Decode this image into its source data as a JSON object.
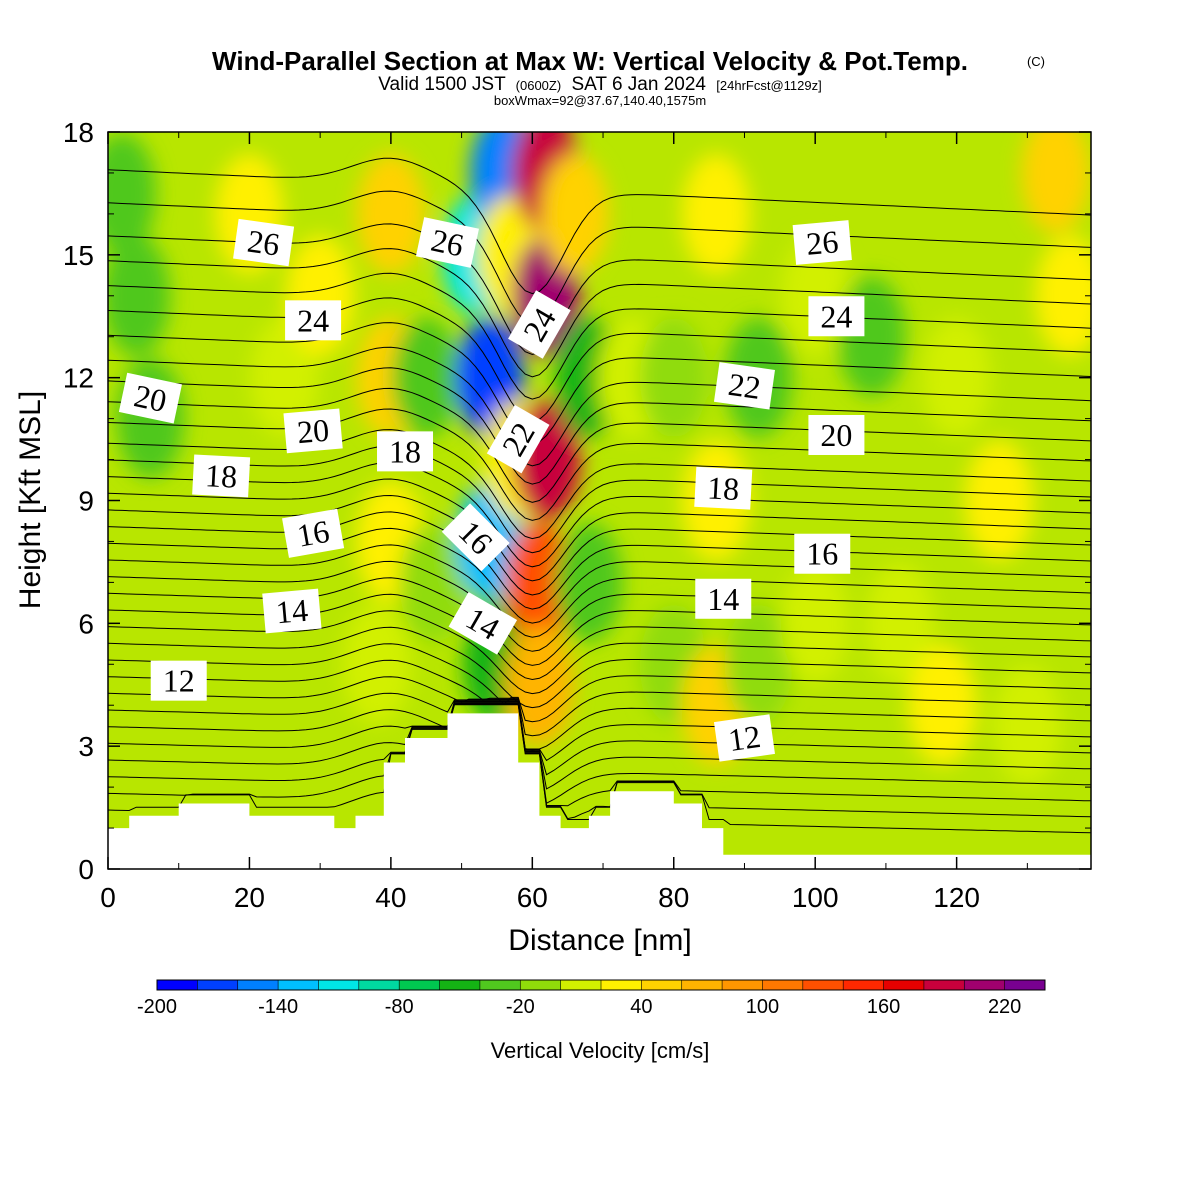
{
  "header": {
    "title": "Wind-Parallel Section at Max W: Vertical Velocity & Pot.Temp.",
    "copyright": "(C)",
    "valid_prefix": "Valid 1500 JST",
    "valid_utc": "(0600Z)",
    "valid_date": "SAT 6 Jan 2024",
    "forecast": "[24hrFcst@1129z]",
    "box_max": "boxWmax=92@37.67,140.40,1575m"
  },
  "chart_data": {
    "type": "heatmap",
    "title": "Wind-Parallel Section at Max W: Vertical Velocity & Pot.Temp.",
    "xlabel": "Distance [nm]",
    "ylabel": "Height [Kft MSL]",
    "xlim": [
      0,
      139
    ],
    "ylim": [
      0,
      18
    ],
    "x_ticks": [
      0,
      20,
      40,
      60,
      80,
      100,
      120
    ],
    "y_ticks": [
      0,
      3,
      6,
      9,
      12,
      15,
      18
    ],
    "x_tick_labels": [
      "0",
      "20",
      "40",
      "60",
      "80",
      "100",
      "120"
    ],
    "y_tick_labels": [
      "0",
      "3",
      "6",
      "9",
      "12",
      "15",
      "18"
    ],
    "colorbar": {
      "title": "Vertical Velocity [cm/s]",
      "min": -200,
      "max": 240,
      "step": 20,
      "tick_values": [
        -200,
        -140,
        -80,
        -20,
        40,
        100,
        160,
        220
      ],
      "tick_labels": [
        "-200",
        "-140",
        "-80",
        "-20",
        "40",
        "100",
        "160",
        "220"
      ],
      "colors": [
        "#0000ff",
        "#0040ff",
        "#0080ff",
        "#00bfff",
        "#00e6e6",
        "#00d9a0",
        "#00c850",
        "#14b414",
        "#50c81e",
        "#90dc0a",
        "#d2f000",
        "#fff000",
        "#ffd200",
        "#ffb400",
        "#ff9600",
        "#ff7800",
        "#ff5000",
        "#ff2800",
        "#e60000",
        "#c8003c",
        "#a0006e",
        "#780090"
      ]
    },
    "vertical_velocity_features": [
      {
        "x": 2,
        "y": 16.5,
        "w": -40
      },
      {
        "x": 4,
        "y": 14,
        "w": -30
      },
      {
        "x": 6,
        "y": 11,
        "w": -40
      },
      {
        "x": 20,
        "y": 16,
        "w": 20
      },
      {
        "x": 25,
        "y": 12,
        "w": 10
      },
      {
        "x": 30,
        "y": 14,
        "w": 20
      },
      {
        "x": 40,
        "y": 16,
        "w": 50
      },
      {
        "x": 40,
        "y": 12,
        "w": 40
      },
      {
        "x": 40,
        "y": 8,
        "w": 20
      },
      {
        "x": 38,
        "y": 5,
        "w": 10
      },
      {
        "x": 45,
        "y": 12,
        "w": -30
      },
      {
        "x": 46,
        "y": 7,
        "w": -20
      },
      {
        "x": 52,
        "y": 15,
        "w": -110
      },
      {
        "x": 54,
        "y": 12,
        "w": -170
      },
      {
        "x": 54,
        "y": 8,
        "w": -140
      },
      {
        "x": 55,
        "y": 5,
        "w": -60
      },
      {
        "x": 56,
        "y": 17,
        "w": -150
      },
      {
        "x": 57,
        "y": 15,
        "w": 20
      },
      {
        "x": 58,
        "y": 10,
        "w": 30
      },
      {
        "x": 62,
        "y": 17,
        "w": 190
      },
      {
        "x": 62,
        "y": 14,
        "w": 210
      },
      {
        "x": 62,
        "y": 10,
        "w": 180
      },
      {
        "x": 61,
        "y": 7,
        "w": 120
      },
      {
        "x": 61,
        "y": 4.5,
        "w": 60
      },
      {
        "x": 66,
        "y": 16,
        "w": 40
      },
      {
        "x": 68,
        "y": 12,
        "w": -60
      },
      {
        "x": 68,
        "y": 7,
        "w": -40
      },
      {
        "x": 74,
        "y": 12,
        "w": 0
      },
      {
        "x": 80,
        "y": 12,
        "w": -20
      },
      {
        "x": 80,
        "y": 5,
        "w": -10
      },
      {
        "x": 86,
        "y": 16,
        "w": 30
      },
      {
        "x": 86,
        "y": 9,
        "w": 30
      },
      {
        "x": 86,
        "y": 4,
        "w": 50
      },
      {
        "x": 92,
        "y": 12,
        "w": -40
      },
      {
        "x": 92,
        "y": 5,
        "w": -20
      },
      {
        "x": 100,
        "y": 14,
        "w": 10
      },
      {
        "x": 100,
        "y": 6,
        "w": 0
      },
      {
        "x": 108,
        "y": 13,
        "w": -40
      },
      {
        "x": 112,
        "y": 6,
        "w": 10
      },
      {
        "x": 118,
        "y": 4,
        "w": 20
      },
      {
        "x": 120,
        "y": 12,
        "w": 10
      },
      {
        "x": 126,
        "y": 9,
        "w": 20
      },
      {
        "x": 130,
        "y": 3.5,
        "w": 0
      },
      {
        "x": 134,
        "y": 17,
        "w": 40
      },
      {
        "x": 136,
        "y": 14,
        "w": 20
      }
    ],
    "terrain": [
      [
        0,
        1.0
      ],
      [
        3,
        1.0
      ],
      [
        3,
        1.3
      ],
      [
        10,
        1.3
      ],
      [
        10,
        1.6
      ],
      [
        20,
        1.6
      ],
      [
        20,
        1.3
      ],
      [
        32,
        1.3
      ],
      [
        32,
        1.0
      ],
      [
        35,
        1.0
      ],
      [
        35,
        1.3
      ],
      [
        39,
        1.3
      ],
      [
        39,
        2.6
      ],
      [
        42,
        2.6
      ],
      [
        42,
        3.2
      ],
      [
        48,
        3.2
      ],
      [
        48,
        3.8
      ],
      [
        58,
        3.8
      ],
      [
        58,
        2.6
      ],
      [
        61,
        2.6
      ],
      [
        61,
        1.3
      ],
      [
        64,
        1.3
      ],
      [
        64,
        1.0
      ],
      [
        68,
        1.0
      ],
      [
        68,
        1.3
      ],
      [
        71,
        1.3
      ],
      [
        71,
        1.9
      ],
      [
        80,
        1.9
      ],
      [
        80,
        1.6
      ],
      [
        84,
        1.6
      ],
      [
        84,
        1.0
      ],
      [
        87,
        1.0
      ],
      [
        87,
        0.35
      ],
      [
        139,
        0.35
      ]
    ],
    "theta_contour_labels": [
      {
        "value": "12",
        "x": 10,
        "y": 4.6,
        "angle": 0
      },
      {
        "value": "14",
        "x": 26,
        "y": 6.3,
        "angle": -5
      },
      {
        "value": "16",
        "x": 29,
        "y": 8.2,
        "angle": -10
      },
      {
        "value": "18",
        "x": 16,
        "y": 9.6,
        "angle": 3
      },
      {
        "value": "20",
        "x": 6,
        "y": 11.5,
        "angle": 12
      },
      {
        "value": "20",
        "x": 29,
        "y": 10.7,
        "angle": -5
      },
      {
        "value": "18",
        "x": 42,
        "y": 10.2,
        "angle": 0
      },
      {
        "value": "24",
        "x": 29,
        "y": 13.4,
        "angle": 0
      },
      {
        "value": "26",
        "x": 22,
        "y": 15.3,
        "angle": 8
      },
      {
        "value": "26",
        "x": 48,
        "y": 15.3,
        "angle": 12
      },
      {
        "value": "24",
        "x": 61,
        "y": 13.3,
        "angle": -60
      },
      {
        "value": "22",
        "x": 58,
        "y": 10.5,
        "angle": -60
      },
      {
        "value": "16",
        "x": 52,
        "y": 8.1,
        "angle": 45
      },
      {
        "value": "14",
        "x": 53,
        "y": 6.0,
        "angle": 30
      },
      {
        "value": "22",
        "x": 90,
        "y": 11.8,
        "angle": 8
      },
      {
        "value": "18",
        "x": 87,
        "y": 9.3,
        "angle": 3
      },
      {
        "value": "14",
        "x": 87,
        "y": 6.6,
        "angle": 0
      },
      {
        "value": "12",
        "x": 90,
        "y": 3.2,
        "angle": -8
      },
      {
        "value": "26",
        "x": 101,
        "y": 15.3,
        "angle": -5
      },
      {
        "value": "24",
        "x": 103,
        "y": 13.5,
        "angle": 0
      },
      {
        "value": "20",
        "x": 103,
        "y": 10.6,
        "angle": 0
      },
      {
        "value": "16",
        "x": 101,
        "y": 7.7,
        "angle": 0
      }
    ],
    "theta_contour_count": 34,
    "theta_contour_base_heights": [
      1.2,
      1.6,
      2.0,
      2.4,
      2.8,
      3.2,
      3.6,
      4.0,
      4.4,
      4.8,
      5.2,
      5.6,
      6.0,
      6.4,
      6.8,
      7.2,
      7.6,
      8.0,
      8.4,
      8.8,
      9.2,
      9.6,
      10.0,
      10.5,
      11.0,
      11.5,
      12.0,
      12.6,
      13.2,
      13.8,
      14.4,
      15.0,
      15.8,
      16.6
    ],
    "legend": "colorbar-bottom",
    "grid": false
  }
}
